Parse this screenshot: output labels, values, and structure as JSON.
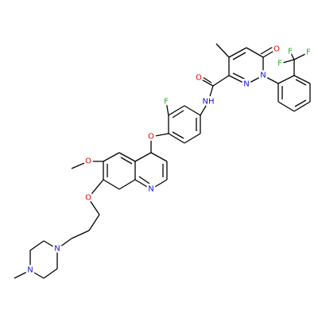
{
  "atoms": [
    "O",
    "F",
    "F",
    "F",
    "N",
    "N",
    "O",
    "NH",
    "F",
    "O",
    "O",
    "O",
    "N",
    "N",
    "N"
  ]
}
